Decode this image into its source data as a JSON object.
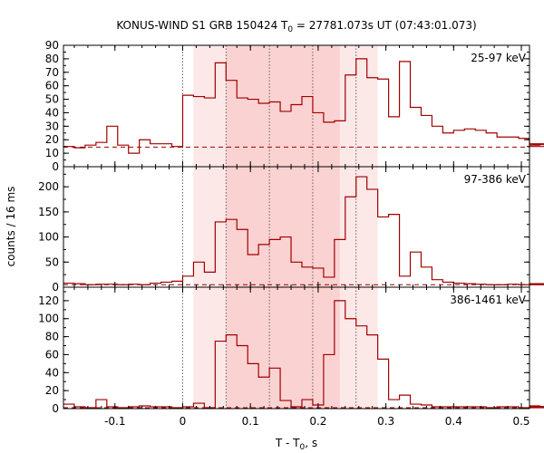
{
  "chart_data": {
    "type": "histogram",
    "title_main": "KONUS-WIND S1 GRB 150424 T",
    "title_sub": "0",
    "title_tail": " = 27781.073s UT (07:43:01.073)",
    "xlabel_main": "T - T",
    "xlabel_sub": "0",
    "xlabel_tail": ", s",
    "ylabel": "counts / 16 ms",
    "xlim": [
      -0.176,
      0.512
    ],
    "xticks": [
      {
        "v": -0.1,
        "label": "-0.1"
      },
      {
        "v": 0,
        "label": "0"
      },
      {
        "v": 0.1,
        "label": "0.1"
      },
      {
        "v": 0.2,
        "label": "0.2"
      },
      {
        "v": 0.3,
        "label": "0.3"
      },
      {
        "v": 0.4,
        "label": "0.4"
      },
      {
        "v": 0.5,
        "label": "0.5"
      }
    ],
    "x_minor_step": 0.02,
    "bin_width": 0.016,
    "bin_start": -0.176,
    "colors": {
      "line": "#a00000",
      "light_band": "#fde8e8",
      "dark_band": "#fbd2d2"
    },
    "light_band": [
      0.016,
      0.288
    ],
    "dark_band": [
      0.064,
      0.232
    ],
    "vlines": [
      0,
      0.064,
      0.128,
      0.192,
      0.256
    ],
    "panels": [
      {
        "label": "25-97 keV",
        "ylim": [
          0,
          90
        ],
        "yticks": [
          {
            "v": 0,
            "label": "0"
          },
          {
            "v": 10,
            "label": "10"
          },
          {
            "v": 20,
            "label": "20"
          },
          {
            "v": 30,
            "label": "30"
          },
          {
            "v": 40,
            "label": "40"
          },
          {
            "v": 50,
            "label": "50"
          },
          {
            "v": 60,
            "label": "60"
          },
          {
            "v": 70,
            "label": "70"
          },
          {
            "v": 80,
            "label": "80"
          },
          {
            "v": 90,
            "label": "90"
          }
        ],
        "y_minor_step": 5,
        "background": 14.5,
        "counts": [
          15,
          14,
          16,
          18,
          30,
          16,
          10,
          20,
          17,
          17,
          15,
          53,
          52,
          51,
          77,
          64,
          51,
          50,
          47,
          48,
          41,
          46,
          52,
          40,
          33,
          34,
          68,
          80,
          66,
          65,
          37,
          78,
          44,
          38,
          30,
          25,
          27,
          28,
          27,
          25,
          22,
          22,
          21,
          16,
          16,
          17,
          17,
          15
        ]
      },
      {
        "label": "97-386 keV",
        "ylim": [
          0,
          240
        ],
        "yticks": [
          {
            "v": 0,
            "label": "0"
          },
          {
            "v": 50,
            "label": "50"
          },
          {
            "v": 100,
            "label": "100"
          },
          {
            "v": 150,
            "label": "150"
          },
          {
            "v": 200,
            "label": "200"
          }
        ],
        "y_minor_step": 25,
        "background": 5,
        "counts": [
          8,
          7,
          5,
          6,
          6,
          5,
          6,
          5,
          8,
          10,
          12,
          22,
          50,
          30,
          130,
          135,
          115,
          65,
          85,
          95,
          100,
          50,
          40,
          38,
          20,
          95,
          180,
          220,
          195,
          140,
          145,
          22,
          70,
          40,
          15,
          10,
          8,
          7,
          6,
          5,
          5,
          6,
          5,
          5,
          6,
          7,
          5,
          6
        ]
      },
      {
        "label": "386-1461 keV",
        "ylim": [
          0,
          135
        ],
        "yticks": [
          {
            "v": 0,
            "label": "0"
          },
          {
            "v": 20,
            "label": "20"
          },
          {
            "v": 40,
            "label": "40"
          },
          {
            "v": 60,
            "label": "60"
          },
          {
            "v": 80,
            "label": "80"
          },
          {
            "v": 100,
            "label": "100"
          },
          {
            "v": 120,
            "label": "120"
          }
        ],
        "y_minor_step": 10,
        "background": 1,
        "counts": [
          5,
          2,
          1,
          10,
          2,
          1,
          2,
          3,
          2,
          2,
          1,
          2,
          6,
          1,
          75,
          82,
          70,
          50,
          35,
          45,
          9,
          2,
          10,
          4,
          60,
          120,
          100,
          92,
          82,
          55,
          10,
          15,
          5,
          4,
          2,
          2,
          2,
          2,
          2,
          1,
          2,
          2,
          1,
          2,
          3,
          2,
          1,
          2
        ]
      }
    ]
  }
}
